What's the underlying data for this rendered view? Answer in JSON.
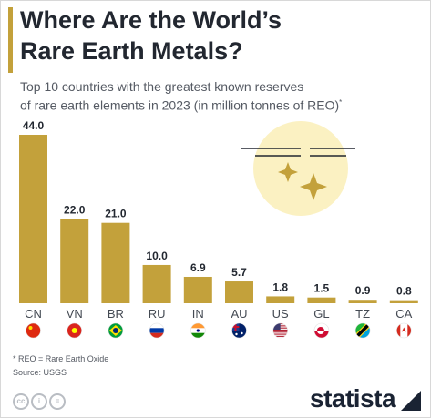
{
  "header": {
    "title_line1": "Where Are the World’s",
    "title_line2": "Rare Earth Metals?",
    "subtitle_line1": "Top 10 countries with the greatest known reserves",
    "subtitle_line2": "of rare earth elements in 2023 (in million tonnes of REO)",
    "subtitle_mark": "*"
  },
  "chart_data": {
    "type": "bar",
    "categories": [
      "CN",
      "VN",
      "BR",
      "RU",
      "IN",
      "AU",
      "US",
      "GL",
      "TZ",
      "CA"
    ],
    "values": [
      44.0,
      22.0,
      21.0,
      10.0,
      6.9,
      5.7,
      1.8,
      1.5,
      0.9,
      0.8
    ],
    "value_labels": [
      "44.0",
      "22.0",
      "21.0",
      "10.0",
      "6.9",
      "5.7",
      "1.8",
      "1.5",
      "0.9",
      "0.8"
    ],
    "ylim": [
      0,
      44
    ],
    "bar_color": "#c3a13b",
    "grid": false,
    "legend": "none",
    "flags": [
      "china-flag-icon",
      "vietnam-flag-icon",
      "brazil-flag-icon",
      "russia-flag-icon",
      "india-flag-icon",
      "australia-flag-icon",
      "usa-flag-icon",
      "greenland-flag-icon",
      "tanzania-flag-icon",
      "canada-flag-icon"
    ]
  },
  "footer": {
    "note": "* REO = Rare Earth Oxide",
    "source": "Source: USGS",
    "brand": "statista",
    "cc_icons": [
      "cc-icon",
      "attribution-icon",
      "noderivs-icon"
    ]
  },
  "colors": {
    "accent": "#c3a13b",
    "title": "#222730",
    "text": "#555a63",
    "sparkle_glow": "#fbf1c2"
  }
}
